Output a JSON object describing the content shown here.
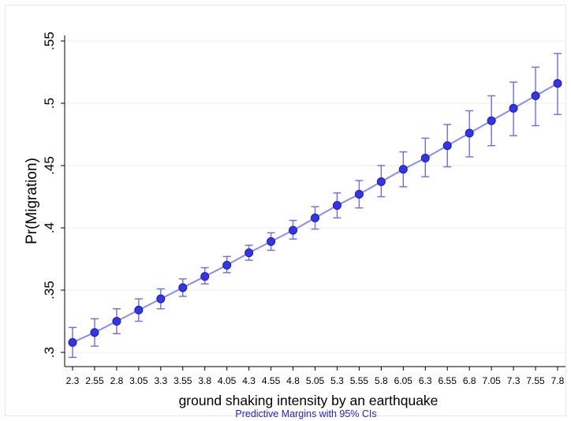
{
  "chart_data": {
    "type": "line",
    "title": "",
    "xlabel": "ground shaking intensity by an earthquake",
    "ylabel": "Pr(Migration)",
    "note": "Predictive Margins with 95% CIs",
    "x": [
      2.3,
      2.55,
      2.8,
      3.05,
      3.3,
      3.55,
      3.8,
      4.05,
      4.3,
      4.55,
      4.8,
      5.05,
      5.3,
      5.55,
      5.8,
      6.05,
      6.3,
      6.55,
      6.8,
      7.05,
      7.3,
      7.55,
      7.8
    ],
    "x_tick_labels": [
      "2.3",
      "2.55",
      "2.8",
      "3.05",
      "3.3",
      "3.55",
      "3.8",
      "4.05",
      "4.3",
      "4.55",
      "4.8",
      "5.05",
      "5.3",
      "5.55",
      "5.8",
      "6.05",
      "6.3",
      "6.55",
      "6.8",
      "7.05",
      "7.3",
      "7.55",
      "7.8"
    ],
    "series": [
      {
        "values": [
          0.308,
          0.316,
          0.325,
          0.334,
          0.343,
          0.352,
          0.361,
          0.37,
          0.38,
          0.389,
          0.398,
          0.408,
          0.418,
          0.427,
          0.437,
          0.447,
          0.456,
          0.466,
          0.476,
          0.486,
          0.496,
          0.506,
          0.516
        ],
        "ci_lower": [
          0.296,
          0.305,
          0.315,
          0.325,
          0.335,
          0.345,
          0.355,
          0.364,
          0.374,
          0.382,
          0.391,
          0.399,
          0.408,
          0.416,
          0.425,
          0.433,
          0.441,
          0.449,
          0.457,
          0.466,
          0.474,
          0.482,
          0.491
        ],
        "ci_upper": [
          0.32,
          0.327,
          0.335,
          0.343,
          0.351,
          0.359,
          0.368,
          0.377,
          0.386,
          0.396,
          0.406,
          0.417,
          0.428,
          0.438,
          0.45,
          0.461,
          0.472,
          0.483,
          0.494,
          0.506,
          0.517,
          0.529,
          0.54
        ]
      }
    ],
    "y_ticks": [
      0.3,
      0.35,
      0.4,
      0.45,
      0.5,
      0.55
    ],
    "y_tick_labels": [
      ".3",
      ".35",
      ".4",
      ".45",
      ".5",
      ".55"
    ],
    "ylim": [
      0.3,
      0.55
    ],
    "grid": true,
    "colors": {
      "line": "#8a8cf0",
      "marker": "#3535e8",
      "marker_edge": "#1a1ab0",
      "ci": "#6a6cf0",
      "grid": "#ececec",
      "note": "#1f1fe0"
    }
  }
}
